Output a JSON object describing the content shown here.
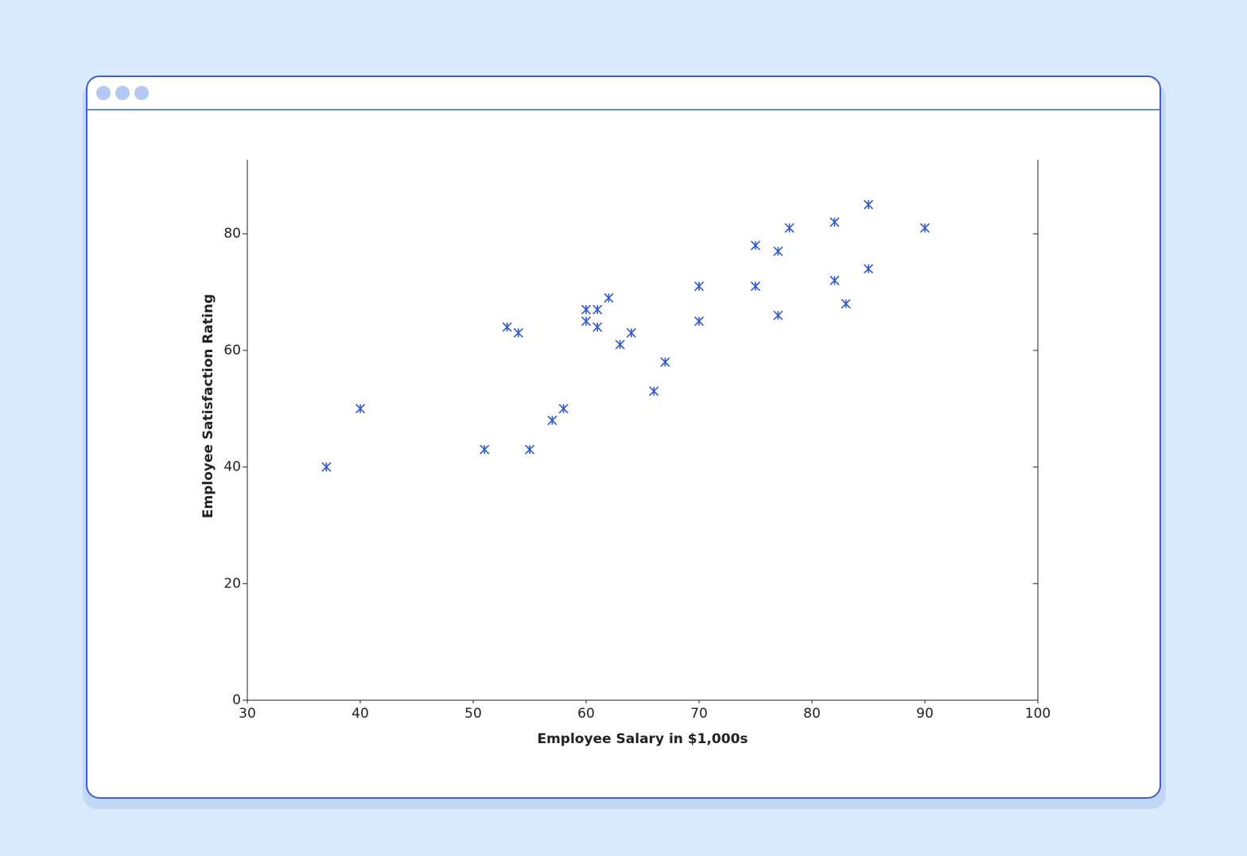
{
  "chart_data": {
    "type": "scatter",
    "x_label": "Employee Salary in $1,000s",
    "y_label": "Employee Satisfaction Rating",
    "x": [
      37,
      40,
      51,
      53,
      54,
      55,
      57,
      58,
      60,
      60,
      61,
      61,
      62,
      63,
      64,
      66,
      67,
      70,
      70,
      75,
      75,
      77,
      77,
      78,
      82,
      82,
      83,
      85,
      85,
      90
    ],
    "values": [
      40,
      50,
      43,
      64,
      63,
      43,
      48,
      50,
      67,
      65,
      67,
      64,
      69,
      61,
      63,
      53,
      58,
      71,
      65,
      78,
      71,
      77,
      66,
      81,
      82,
      72,
      68,
      85,
      74,
      81
    ],
    "color": "#2b57d9",
    "marker": "x",
    "xlim": [
      30,
      100
    ],
    "xticks": [
      30,
      40,
      50,
      60,
      70,
      80,
      90,
      100
    ],
    "ylim": [
      0,
      92.7
    ],
    "yticks": [
      0,
      20,
      40,
      60,
      80
    ]
  }
}
